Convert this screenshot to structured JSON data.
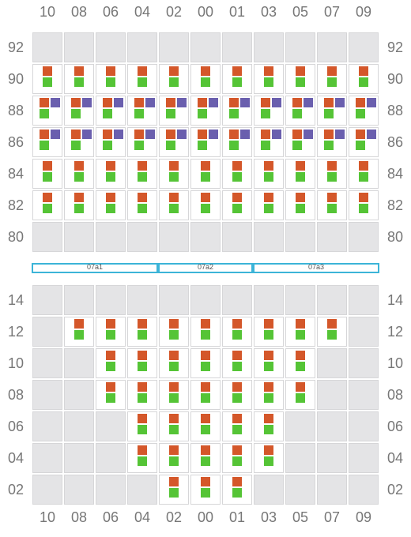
{
  "colors": {
    "orange": "#d4572a",
    "green": "#55c436",
    "purple": "#6a5fae",
    "empty_cell": "#e4e4e6",
    "aisle_border": "#3cb4d8",
    "label": "#777777"
  },
  "columns": [
    "10",
    "08",
    "06",
    "04",
    "02",
    "00",
    "01",
    "03",
    "05",
    "07",
    "09"
  ],
  "top_section": {
    "rows": [
      {
        "label": "92",
        "cells": [
          "",
          "",
          "",
          "",
          "",
          "",
          "",
          "",
          "",
          "",
          ""
        ]
      },
      {
        "label": "90",
        "cells": [
          "OG",
          "OG",
          "OG",
          "OG",
          "OG",
          "OG",
          "OG",
          "OG",
          "OG",
          "OG",
          "OG"
        ]
      },
      {
        "label": "88",
        "cells": [
          "OPG",
          "OPG",
          "OPG",
          "OPG",
          "OPG",
          "OPG",
          "OPG",
          "OPG",
          "OPG",
          "OPG",
          "OPG"
        ]
      },
      {
        "label": "86",
        "cells": [
          "OPG",
          "OPG",
          "OPG",
          "OPG",
          "OPG",
          "OPG",
          "OPG",
          "OPG",
          "OPG",
          "OPG",
          "OPG"
        ]
      },
      {
        "label": "84",
        "cells": [
          "OG",
          "OG",
          "OG",
          "OG",
          "OG",
          "OG",
          "OG",
          "OG",
          "OG",
          "OG",
          "OG"
        ]
      },
      {
        "label": "82",
        "cells": [
          "OG",
          "OG",
          "OG",
          "OG",
          "OG",
          "OG",
          "OG",
          "OG",
          "OG",
          "OG",
          "OG"
        ]
      },
      {
        "label": "80",
        "cells": [
          "",
          "",
          "",
          "",
          "",
          "",
          "",
          "",
          "",
          "",
          ""
        ]
      }
    ]
  },
  "aisles": [
    {
      "label": "07a1",
      "from": 0,
      "span": 4
    },
    {
      "label": "07a2",
      "from": 4,
      "span": 3
    },
    {
      "label": "07a3",
      "from": 7,
      "span": 4
    }
  ],
  "bottom_section": {
    "rows": [
      {
        "label": "14",
        "cells": [
          "",
          "",
          "",
          "",
          "",
          "",
          "",
          "",
          "",
          "",
          ""
        ]
      },
      {
        "label": "12",
        "cells": [
          "",
          "OG",
          "OG",
          "OG",
          "OG",
          "OG",
          "OG",
          "OG",
          "OG",
          "OG",
          ""
        ]
      },
      {
        "label": "10",
        "cells": [
          "",
          "",
          "OG",
          "OG",
          "OG",
          "OG",
          "OG",
          "OG",
          "OG",
          "",
          ""
        ]
      },
      {
        "label": "08",
        "cells": [
          "",
          "",
          "OG",
          "OG",
          "OG",
          "OG",
          "OG",
          "OG",
          "OG",
          "",
          ""
        ]
      },
      {
        "label": "06",
        "cells": [
          "",
          "",
          "",
          "OG",
          "OG",
          "OG",
          "OG",
          "OG",
          "",
          "",
          ""
        ]
      },
      {
        "label": "04",
        "cells": [
          "",
          "",
          "",
          "OG",
          "OG",
          "OG",
          "OG",
          "OG",
          "",
          "",
          ""
        ]
      },
      {
        "label": "02",
        "cells": [
          "",
          "",
          "",
          "",
          "OG",
          "OG",
          "OG",
          "",
          "",
          "",
          ""
        ]
      }
    ]
  }
}
